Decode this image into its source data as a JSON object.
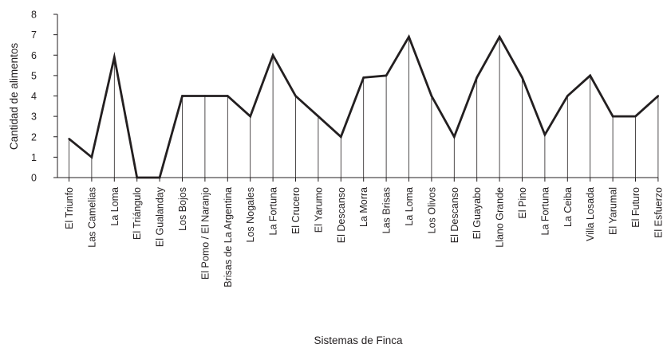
{
  "chart_data": {
    "type": "line",
    "title": "",
    "xlabel": "Sistemas de Finca",
    "ylabel": "Cantidad de alimentos",
    "ylim": [
      0,
      8
    ],
    "yticks": [
      0,
      1,
      2,
      3,
      4,
      5,
      6,
      7,
      8
    ],
    "grid": false,
    "drop_lines": true,
    "line_color": "#231f20",
    "categories": [
      "El Triunfo",
      "Las Camelias",
      "La Loma",
      "El Triángulo",
      "El Gualanday",
      "Los Bojos",
      "El Pomo / El Naranjo",
      "Brisas de La Argentina",
      "Los Nogales",
      "La Fortuna",
      "El Crucero",
      "El Yarumo",
      "El Descanso",
      "La Morra",
      "Las Brisas",
      "La Loma",
      "Los Olivos",
      "El Descanso",
      "El Guayabo",
      "Llano Grande",
      "El Pino",
      "La Fortuna",
      "La Ceiba",
      "Villa Losada",
      "El Yarumal",
      "El Futuro",
      "El Esfuerzo"
    ],
    "values": [
      1.9,
      1.0,
      5.9,
      0,
      0,
      4,
      4,
      4,
      3,
      6,
      4,
      3,
      2,
      4.9,
      5,
      6.9,
      4,
      2,
      4.9,
      6.9,
      4.9,
      2.1,
      4,
      5,
      3,
      3,
      4
    ]
  }
}
